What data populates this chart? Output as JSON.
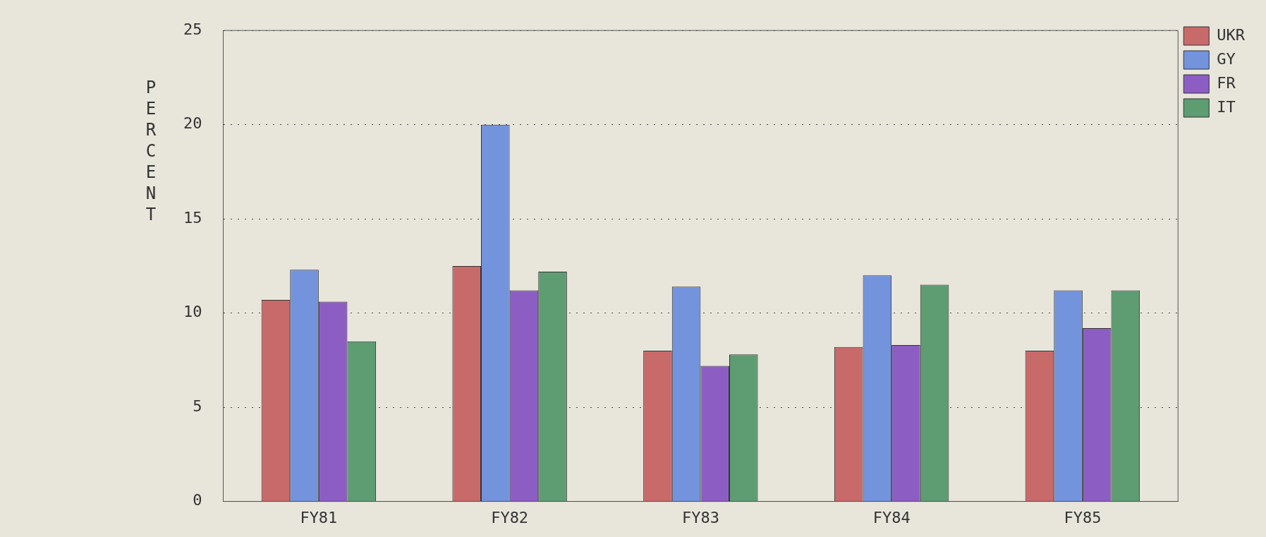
{
  "chart_data": {
    "type": "bar",
    "ylabel": "PERCENT",
    "categories": [
      "FY81",
      "FY82",
      "FY83",
      "FY84",
      "FY85"
    ],
    "series": [
      {
        "name": "UKR",
        "color": "#c86a6a",
        "values": [
          10.7,
          12.5,
          8.0,
          8.2,
          8.0
        ]
      },
      {
        "name": "GY",
        "color": "#7393dc",
        "values": [
          12.3,
          20.0,
          11.4,
          12.0,
          11.2
        ]
      },
      {
        "name": "FR",
        "color": "#8c5ec4",
        "values": [
          10.6,
          11.2,
          7.2,
          8.3,
          9.2
        ]
      },
      {
        "name": "IT",
        "color": "#5e9c72",
        "values": [
          8.5,
          12.2,
          7.8,
          11.5,
          11.2
        ]
      }
    ],
    "ylim": [
      0,
      25
    ],
    "yticks": [
      0,
      5,
      10,
      15,
      20,
      25
    ],
    "grid": "y",
    "legend": "top right"
  }
}
